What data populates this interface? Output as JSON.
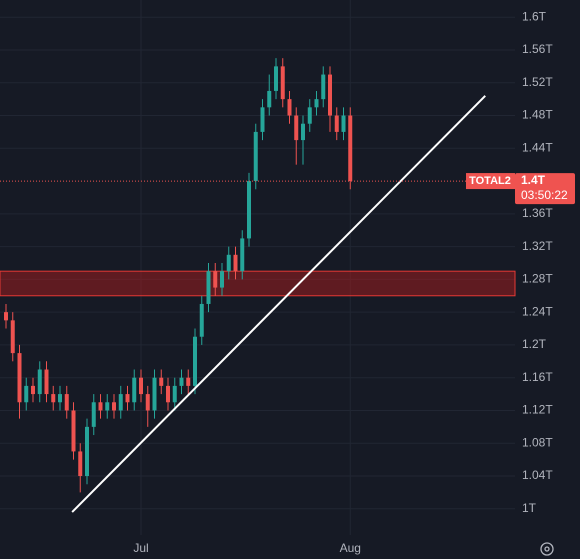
{
  "chart_data": {
    "type": "candlestick",
    "symbol": "TOTAL2",
    "countdown": "03:50:22",
    "last_price": {
      "value": 1.4,
      "label": "1.4T"
    },
    "categories": [
      null,
      null,
      null,
      null,
      null,
      null,
      null,
      null,
      null,
      null,
      null,
      null,
      null,
      null,
      null,
      null,
      null,
      null,
      null,
      null,
      "Jul",
      null,
      null,
      null,
      null,
      null,
      null,
      null,
      null,
      null,
      null,
      null,
      null,
      null,
      null,
      null,
      null,
      null,
      null,
      null,
      null,
      null,
      null,
      null,
      null,
      null,
      null,
      null,
      null,
      null,
      null,
      "Aug"
    ],
    "open": [
      1.24,
      1.23,
      1.19,
      1.13,
      1.15,
      1.14,
      1.17,
      1.14,
      1.13,
      1.14,
      1.12,
      1.07,
      1.04,
      1.1,
      1.13,
      1.12,
      1.13,
      1.12,
      1.14,
      1.13,
      1.16,
      1.14,
      1.12,
      1.16,
      1.15,
      1.13,
      1.15,
      1.16,
      1.15,
      1.21,
      1.25,
      1.29,
      1.27,
      1.29,
      1.31,
      1.29,
      1.33,
      1.4,
      1.46,
      1.49,
      1.51,
      1.54,
      1.5,
      1.48,
      1.45,
      1.47,
      1.49,
      1.5,
      1.53,
      1.48,
      1.46,
      1.48
    ],
    "high": [
      1.25,
      1.24,
      1.2,
      1.16,
      1.16,
      1.18,
      1.18,
      1.15,
      1.15,
      1.15,
      1.13,
      1.08,
      1.11,
      1.14,
      1.14,
      1.14,
      1.14,
      1.15,
      1.15,
      1.17,
      1.17,
      1.15,
      1.17,
      1.17,
      1.16,
      1.16,
      1.17,
      1.17,
      1.22,
      1.26,
      1.3,
      1.3,
      1.3,
      1.32,
      1.32,
      1.34,
      1.41,
      1.47,
      1.5,
      1.53,
      1.55,
      1.55,
      1.51,
      1.49,
      1.48,
      1.5,
      1.51,
      1.54,
      1.54,
      1.49,
      1.49,
      1.49
    ],
    "low": [
      1.22,
      1.18,
      1.11,
      1.12,
      1.13,
      1.13,
      1.13,
      1.12,
      1.12,
      1.11,
      1.06,
      1.02,
      1.03,
      1.09,
      1.11,
      1.11,
      1.11,
      1.11,
      1.12,
      1.12,
      1.13,
      1.1,
      1.11,
      1.14,
      1.12,
      1.12,
      1.14,
      1.14,
      1.14,
      1.2,
      1.24,
      1.26,
      1.26,
      1.28,
      1.28,
      1.28,
      1.32,
      1.39,
      1.45,
      1.48,
      1.5,
      1.49,
      1.47,
      1.42,
      1.42,
      1.46,
      1.48,
      1.49,
      1.46,
      1.45,
      1.45,
      1.39
    ],
    "close": [
      1.23,
      1.19,
      1.13,
      1.15,
      1.14,
      1.17,
      1.14,
      1.13,
      1.14,
      1.12,
      1.07,
      1.04,
      1.1,
      1.13,
      1.12,
      1.13,
      1.12,
      1.14,
      1.13,
      1.16,
      1.14,
      1.12,
      1.16,
      1.15,
      1.13,
      1.15,
      1.16,
      1.15,
      1.21,
      1.25,
      1.29,
      1.27,
      1.29,
      1.31,
      1.29,
      1.33,
      1.4,
      1.46,
      1.49,
      1.51,
      1.54,
      1.5,
      1.48,
      1.45,
      1.47,
      1.49,
      1.5,
      1.53,
      1.48,
      1.46,
      1.48,
      1.4
    ],
    "up_color": "#26a69a",
    "down_color": "#ef5350",
    "zone": {
      "low": 1.26,
      "high": 1.29,
      "color": "#b71c1c"
    },
    "trendline": {
      "index": [
        9.8,
        71
      ],
      "values": [
        0.996,
        1.504
      ],
      "color": "#ffffff"
    },
    "ylim": [
      0.968,
      1.621
    ],
    "yticks": [
      {
        "value": 1.0,
        "label": "1T"
      },
      {
        "value": 1.04,
        "label": "1.04T"
      },
      {
        "value": 1.08,
        "label": "1.08T"
      },
      {
        "value": 1.12,
        "label": "1.12T"
      },
      {
        "value": 1.16,
        "label": "1.16T"
      },
      {
        "value": 1.2,
        "label": "1.2T"
      },
      {
        "value": 1.24,
        "label": "1.24T"
      },
      {
        "value": 1.28,
        "label": "1.28T"
      },
      {
        "value": 1.32,
        "label": "1.32T"
      },
      {
        "value": 1.36,
        "label": "1.36T"
      },
      {
        "value": 1.44,
        "label": "1.44T"
      },
      {
        "value": 1.48,
        "label": "1.48T"
      },
      {
        "value": 1.52,
        "label": "1.52T"
      },
      {
        "value": 1.56,
        "label": "1.56T"
      },
      {
        "value": 1.6,
        "label": "1.6T"
      }
    ],
    "grid": true
  }
}
